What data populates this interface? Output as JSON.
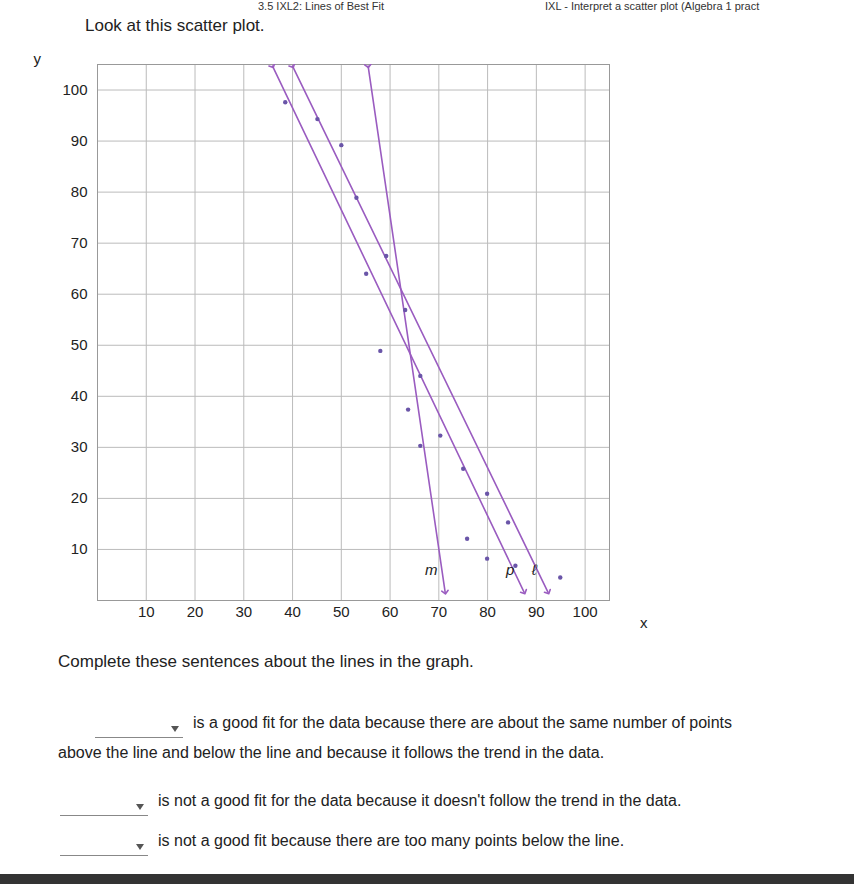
{
  "page": {
    "tabs": [
      "3.5 IXL2: Lines of Best Fit",
      "IXL - Interpret a scatter plot (Algebra 1 pract"
    ],
    "prompt": "Look at this scatter plot.",
    "instruction": "Complete these sentences about the lines in the graph.",
    "sentences": [
      "is a good fit for the data because there are about the same number of points above the line and below the line and because it follows the trend in the data.",
      "is not a good fit for the data because it doesn't follow the trend in the data.",
      "is not a good fit because there are too many points below the line."
    ]
  },
  "chart_data": {
    "type": "scatter",
    "x_label": "x",
    "y_label": "y",
    "xlim": [
      0,
      105
    ],
    "ylim": [
      0,
      105
    ],
    "xticks": [
      10,
      20,
      30,
      40,
      50,
      60,
      70,
      80,
      90,
      100
    ],
    "yticks": [
      10,
      20,
      30,
      40,
      50,
      60,
      70,
      80,
      90,
      100
    ],
    "grid": true,
    "marker": "circle",
    "color": "#6a55a8",
    "x": [
      38.5,
      45.1,
      50,
      53.1,
      59.2,
      55.1,
      63.1,
      58,
      66.2,
      63.7,
      70.3,
      66.2,
      75,
      79.9,
      84.2,
      75.8,
      79.9,
      85.7,
      94.9
    ],
    "y": [
      97.6,
      94.3,
      89.2,
      78.9,
      67.5,
      64,
      56.9,
      48.9,
      44,
      37.4,
      32.3,
      30.3,
      25.8,
      20.9,
      15.3,
      12.1,
      8.2,
      6.8,
      4.5
    ],
    "lines": [
      {
        "name": "p",
        "color": "#9a5cc0",
        "points": [
          [
            35.9,
            104.7
          ],
          [
            87.5,
            1.6
          ]
        ]
      },
      {
        "name": "ℓ",
        "color": "#9a5cc0",
        "points": [
          [
            40,
            104.7
          ],
          [
            92.4,
            1.6
          ]
        ]
      },
      {
        "name": "m",
        "color": "#9a5cc0",
        "points": [
          [
            55.5,
            104.7
          ],
          [
            71.3,
            1.6
          ]
        ]
      }
    ]
  }
}
